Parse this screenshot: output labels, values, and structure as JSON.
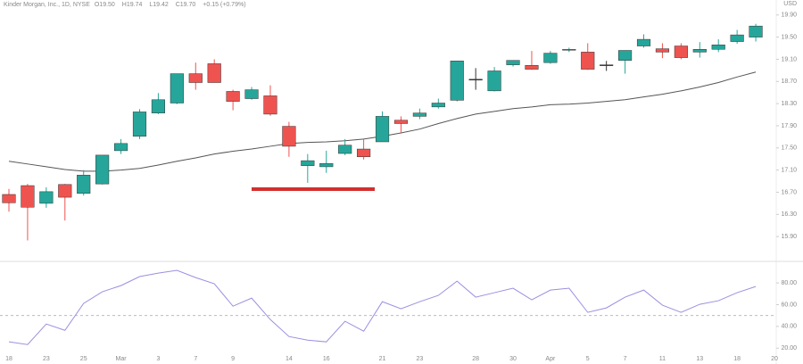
{
  "header": {
    "title": "Kinder Morgan, Inc., 1D, NYSE",
    "ohlc": [
      {
        "key": "O",
        "value": "19.50"
      },
      {
        "key": "H",
        "value": "19.74"
      },
      {
        "key": "L",
        "value": "19.42"
      },
      {
        "key": "C",
        "value": "19.70"
      }
    ],
    "change": "+0.15 (+0.79%)"
  },
  "chart_data": [
    {
      "type": "candlestick",
      "currency": "USD",
      "categories": [
        "18",
        null,
        "23",
        null,
        "25",
        null,
        "Mar",
        null,
        "3",
        null,
        "7",
        null,
        "9",
        null,
        null,
        "14",
        null,
        "16",
        null,
        null,
        "21",
        null,
        "23",
        null,
        null,
        "28",
        null,
        "30",
        null,
        "Apr",
        null,
        "5",
        null,
        "7",
        null,
        "11",
        null,
        "13",
        null,
        "18",
        null,
        "20"
      ],
      "open": [
        16.66,
        16.82,
        16.5,
        16.84,
        16.68,
        16.85,
        17.45,
        17.71,
        18.13,
        18.31,
        18.84,
        19.02,
        18.52,
        18.39,
        18.44,
        17.89,
        17.18,
        17.16,
        17.4,
        17.48,
        17.61,
        18.0,
        18.07,
        18.24,
        18.36,
        18.74,
        18.53,
        19.0,
        18.99,
        19.04,
        19.27,
        19.23,
        19.0,
        19.08,
        19.34,
        19.29,
        19.34,
        19.23,
        19.28,
        19.42,
        19.5,
        null
      ],
      "high": [
        16.76,
        16.85,
        16.79,
        16.85,
        17.1,
        17.37,
        17.66,
        18.2,
        18.49,
        18.84,
        19.04,
        19.1,
        18.55,
        18.6,
        18.63,
        17.97,
        17.39,
        17.45,
        17.66,
        17.65,
        18.16,
        18.07,
        18.21,
        18.39,
        19.07,
        18.94,
        18.96,
        19.08,
        19.25,
        19.25,
        19.31,
        19.39,
        19.07,
        19.26,
        19.55,
        19.39,
        19.39,
        19.41,
        19.46,
        19.63,
        19.74,
        null
      ],
      "low": [
        16.35,
        15.83,
        16.42,
        16.19,
        16.64,
        16.84,
        17.39,
        17.66,
        18.11,
        18.29,
        18.55,
        18.68,
        18.18,
        18.37,
        18.08,
        17.34,
        16.87,
        17.05,
        17.37,
        17.29,
        17.61,
        17.77,
        18.02,
        18.21,
        18.34,
        18.55,
        18.52,
        18.97,
        18.91,
        19.02,
        19.23,
        18.91,
        18.89,
        18.84,
        19.31,
        19.12,
        19.1,
        19.13,
        19.23,
        19.38,
        19.42,
        null
      ],
      "close": [
        16.51,
        16.43,
        16.71,
        16.61,
        17.01,
        17.37,
        17.58,
        18.15,
        18.37,
        18.84,
        18.68,
        18.68,
        18.34,
        18.55,
        18.11,
        17.53,
        17.27,
        17.22,
        17.55,
        17.34,
        18.07,
        17.94,
        18.13,
        18.31,
        19.07,
        18.74,
        18.89,
        19.08,
        18.92,
        19.21,
        19.28,
        18.92,
        19.0,
        19.26,
        19.46,
        19.23,
        19.13,
        19.28,
        19.36,
        19.54,
        19.7,
        null
      ],
      "up_color": "#26a69a",
      "down_color": "#ef5350",
      "neutral_color": "#333333",
      "overlay": {
        "color": "#555555",
        "values": [
          17.26,
          17.21,
          17.16,
          17.11,
          17.08,
          17.08,
          17.1,
          17.13,
          17.19,
          17.26,
          17.32,
          17.39,
          17.44,
          17.48,
          17.53,
          17.58,
          17.6,
          17.61,
          17.63,
          17.66,
          17.71,
          17.77,
          17.84,
          17.94,
          18.03,
          18.11,
          18.16,
          18.21,
          18.24,
          18.28,
          18.29,
          18.31,
          18.34,
          18.37,
          18.42,
          18.47,
          18.53,
          18.6,
          18.68,
          18.78,
          18.87,
          null
        ]
      },
      "ylim": [
        15.5,
        20.17
      ],
      "yticks": [
        {
          "value": 19.9,
          "label": "19.90"
        },
        {
          "value": 19.5,
          "label": "19.50"
        },
        {
          "value": 19.1,
          "label": "19.10"
        },
        {
          "value": 18.7,
          "label": "18.70"
        },
        {
          "value": 18.3,
          "label": "18.30"
        },
        {
          "value": 17.9,
          "label": "17.90"
        },
        {
          "value": 17.5,
          "label": "17.50"
        },
        {
          "value": 17.1,
          "label": "17.10"
        },
        {
          "value": 16.7,
          "label": "16.70"
        },
        {
          "value": 16.3,
          "label": "16.30"
        },
        {
          "value": 15.9,
          "label": "15.90"
        }
      ],
      "grid": false
    },
    {
      "type": "line",
      "color": "#9c8fe0",
      "values": [
        25.8,
        23.3,
        42.2,
        36.4,
        61.1,
        71.8,
        77.5,
        85.8,
        89.0,
        91.5,
        84.9,
        79.2,
        58.6,
        66.0,
        46.3,
        30.7,
        27.4,
        25.8,
        44.7,
        35.6,
        62.7,
        56.2,
        62.7,
        68.5,
        81.6,
        66.9,
        71.0,
        75.1,
        64.4,
        73.4,
        75.1,
        52.9,
        57.0,
        66.9,
        73.4,
        59.5,
        52.9,
        60.3,
        63.6,
        71.0,
        76.7,
        null
      ],
      "reference_line": 50,
      "ylim": [
        12,
        94
      ],
      "yticks": [
        {
          "value": 80,
          "label": "80.00"
        },
        {
          "value": 60,
          "label": "60.00"
        },
        {
          "value": 40,
          "label": "40.00"
        },
        {
          "value": 20,
          "label": "20.00"
        }
      ]
    }
  ]
}
